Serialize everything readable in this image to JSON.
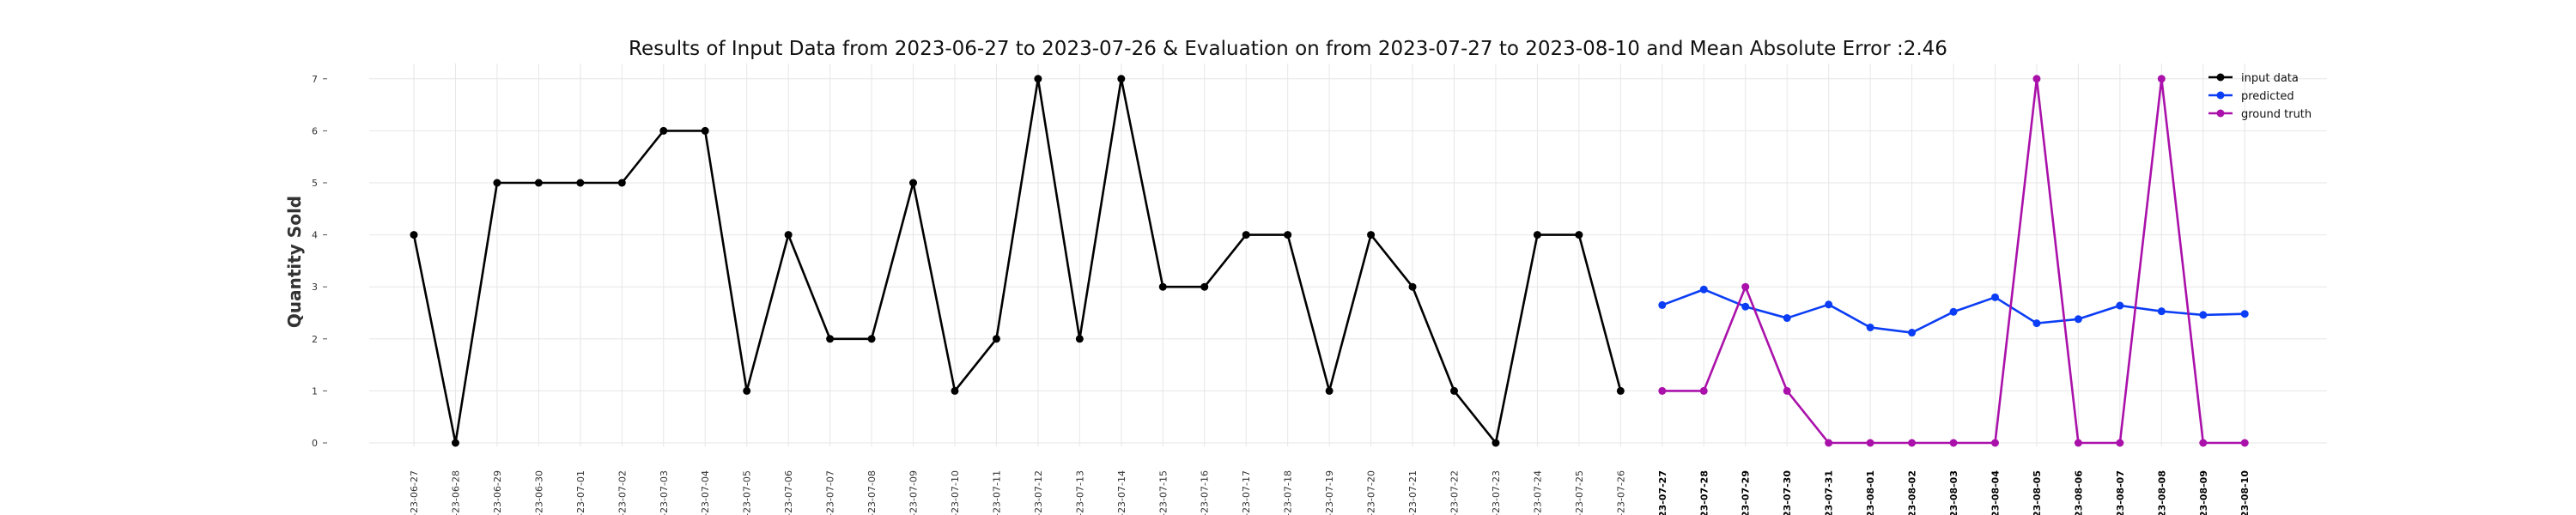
{
  "chart_data": {
    "type": "line",
    "title": "Results of Input Data from 2023-06-27 to 2023-07-26 & Evaluation on from 2023-07-27 to 2023-08-10 and Mean Absolute Error  :2.46",
    "xlabel": "",
    "ylabel": "Quantity Sold",
    "ylim": [
      0,
      7
    ],
    "yticks": [
      0,
      1,
      2,
      3,
      4,
      5,
      6,
      7
    ],
    "grid": true,
    "legend_position": "top-right",
    "x": [
      "2023-06-27",
      "2023-06-28",
      "2023-06-29",
      "2023-06-30",
      "2023-07-01",
      "2023-07-02",
      "2023-07-03",
      "2023-07-04",
      "2023-07-05",
      "2023-07-06",
      "2023-07-07",
      "2023-07-08",
      "2023-07-09",
      "2023-07-10",
      "2023-07-11",
      "2023-07-12",
      "2023-07-13",
      "2023-07-14",
      "2023-07-15",
      "2023-07-16",
      "2023-07-17",
      "2023-07-18",
      "2023-07-19",
      "2023-07-20",
      "2023-07-21",
      "2023-07-22",
      "2023-07-23",
      "2023-07-24",
      "2023-07-25",
      "2023-07-26",
      "2023-07-27",
      "2023-07-28",
      "2023-07-29",
      "2023-07-30",
      "2023-07-31",
      "2023-08-01",
      "2023-08-02",
      "2023-08-03",
      "2023-08-04",
      "2023-08-05",
      "2023-08-06",
      "2023-08-07",
      "2023-08-08",
      "2023-08-09",
      "2023-08-10"
    ],
    "xtick_labels": [
      "-23-06-27",
      "-23-06-28",
      "-23-06-29",
      "-23-06-30",
      "-23-07-01",
      "-23-07-02",
      "-23-07-03",
      "-23-07-04",
      "-23-07-05",
      "-23-07-06",
      "-23-07-07",
      "-23-07-08",
      "-23-07-09",
      "-23-07-10",
      "-23-07-11",
      "-23-07-12",
      "-23-07-13",
      "-23-07-14",
      "-23-07-15",
      "-23-07-16",
      "-23-07-17",
      "-23-07-18",
      "-23-07-19",
      "-23-07-20",
      "-23-07-21",
      "-23-07-22",
      "-23-07-23",
      "-23-07-24",
      "-23-07-25",
      "-23-07-26",
      "-23-07-27",
      "-23-07-28",
      "-23-07-29",
      "-23-07-30",
      "-23-07-31",
      "-23-08-01",
      "-23-08-02",
      "-23-08-03",
      "-23-08-04",
      "-23-08-05",
      "-23-08-06",
      "-23-08-07",
      "-23-08-08",
      "-23-08-09",
      "-23-08-10"
    ],
    "series": [
      {
        "name": "input data",
        "color": "#000000",
        "x": [
          "2023-06-27",
          "2023-06-28",
          "2023-06-29",
          "2023-06-30",
          "2023-07-01",
          "2023-07-02",
          "2023-07-03",
          "2023-07-04",
          "2023-07-05",
          "2023-07-06",
          "2023-07-07",
          "2023-07-08",
          "2023-07-09",
          "2023-07-10",
          "2023-07-11",
          "2023-07-12",
          "2023-07-13",
          "2023-07-14",
          "2023-07-15",
          "2023-07-16",
          "2023-07-17",
          "2023-07-18",
          "2023-07-19",
          "2023-07-20",
          "2023-07-21",
          "2023-07-22",
          "2023-07-23",
          "2023-07-24",
          "2023-07-25",
          "2023-07-26"
        ],
        "values": [
          4,
          0,
          5,
          5,
          5,
          5,
          6,
          6,
          1,
          4,
          2,
          2,
          5,
          1,
          2,
          7,
          2,
          7,
          3,
          3,
          4,
          4,
          1,
          4,
          3,
          1,
          0,
          4,
          4,
          1
        ]
      },
      {
        "name": "predicted",
        "color": "#0b3df5",
        "x": [
          "2023-07-27",
          "2023-07-28",
          "2023-07-29",
          "2023-07-30",
          "2023-07-31",
          "2023-08-01",
          "2023-08-02",
          "2023-08-03",
          "2023-08-04",
          "2023-08-05",
          "2023-08-06",
          "2023-08-07",
          "2023-08-08",
          "2023-08-09",
          "2023-08-10"
        ],
        "values": [
          2.65,
          2.95,
          2.62,
          2.4,
          2.66,
          2.22,
          2.12,
          2.52,
          2.8,
          2.3,
          2.38,
          2.64,
          2.53,
          2.46,
          2.48
        ]
      },
      {
        "name": "ground truth",
        "color": "#aa11aa",
        "x": [
          "2023-07-27",
          "2023-07-28",
          "2023-07-29",
          "2023-07-30",
          "2023-07-31",
          "2023-08-01",
          "2023-08-02",
          "2023-08-03",
          "2023-08-04",
          "2023-08-05",
          "2023-08-06",
          "2023-08-07",
          "2023-08-08",
          "2023-08-09",
          "2023-08-10"
        ],
        "values": [
          1,
          1,
          3,
          1,
          0,
          0,
          0,
          0,
          0,
          7,
          0,
          0,
          7,
          0,
          0
        ]
      }
    ]
  }
}
